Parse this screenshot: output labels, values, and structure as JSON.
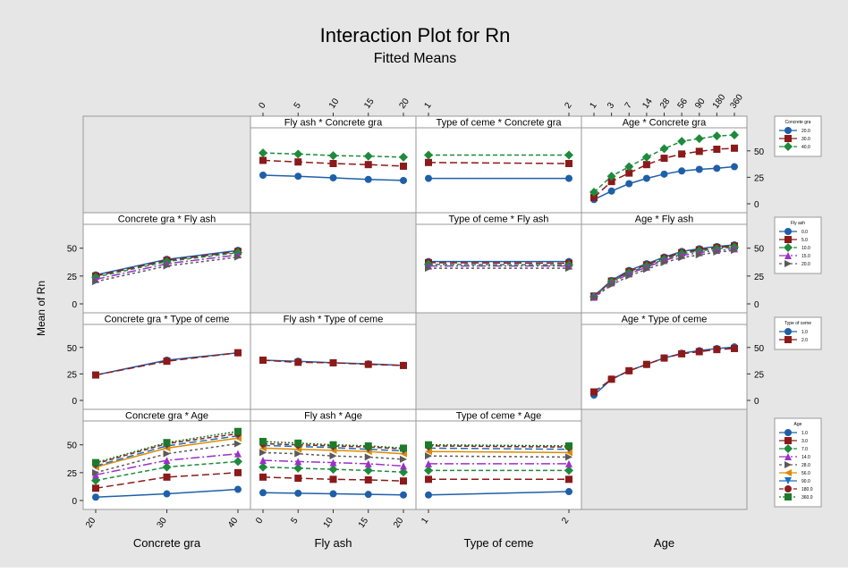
{
  "title": "Interaction Plot for Rn",
  "subtitle": "Fitted Means",
  "ylabel": "Mean of Rn",
  "colors": {
    "background": "#e6e6e6",
    "panel": "#ffffff",
    "series": [
      "#1f5fa8",
      "#8b1a1a",
      "#1e8a3c",
      "#9b30c8",
      "#5a5a5a",
      "#e08a00",
      "#1a6fc0",
      "#8b2020",
      "#1e7a2a"
    ]
  },
  "factors": [
    {
      "name": "Concrete gra",
      "levels": [
        "20",
        "30",
        "40"
      ]
    },
    {
      "name": "Fly ash",
      "levels": [
        "0",
        "5",
        "10",
        "15",
        "20"
      ]
    },
    {
      "name": "Type of ceme",
      "levels": [
        "1",
        "2"
      ]
    },
    {
      "name": "Age",
      "levels": [
        "1",
        "3",
        "7",
        "14",
        "28",
        "56",
        "90",
        "180",
        "360"
      ]
    }
  ],
  "row_axis_ticks": [
    [
      "0",
      "25",
      "50"
    ],
    [
      "0",
      "25",
      "50"
    ],
    [
      "0",
      "25",
      "50"
    ],
    [
      "0",
      "25",
      "50"
    ]
  ],
  "legends": [
    {
      "title": "Concrete gra",
      "entries": [
        "20.0",
        "30.0",
        "40.0"
      ]
    },
    {
      "title": "Fly ash",
      "entries": [
        "0.0",
        "5.0",
        "10.0",
        "15.0",
        "20.0"
      ]
    },
    {
      "title": "Type of ceme",
      "entries": [
        "1.0",
        "2.0"
      ]
    },
    {
      "title": "Age",
      "entries": [
        "1.0",
        "3.0",
        "7.0",
        "14.0",
        "28.0",
        "56.0",
        "90.0",
        "180.0",
        "360.0"
      ]
    }
  ],
  "chart_data": {
    "type": "line",
    "title": "Interaction Plot for Rn",
    "subtitle": "Fitted Means",
    "ylabel": "Mean of Rn",
    "ylim": [
      0,
      65
    ],
    "grid": false,
    "panels": [
      {
        "row": 0,
        "col": 1,
        "title": "Fly ash * Concrete gra",
        "series": [
          {
            "values": [
              27,
              26,
              24.5,
              23,
              22
            ]
          },
          {
            "values": [
              41,
              39.5,
              38,
              37,
              35.5
            ]
          },
          {
            "values": [
              48,
              47,
              45.5,
              45,
              44
            ]
          }
        ]
      },
      {
        "row": 0,
        "col": 2,
        "title": "Type of ceme * Concrete gra",
        "series": [
          {
            "values": [
              24,
              24
            ]
          },
          {
            "values": [
              39,
              38
            ]
          },
          {
            "values": [
              46,
              46
            ]
          }
        ]
      },
      {
        "row": 0,
        "col": 3,
        "title": "Age * Concrete gra",
        "series": [
          {
            "values": [
              4,
              12,
              19,
              24,
              28,
              31,
              32.5,
              33.5,
              35
            ]
          },
          {
            "values": [
              6,
              21,
              29,
              37,
              43,
              47,
              49.5,
              51.5,
              52.5
            ]
          },
          {
            "values": [
              11,
              26,
              35,
              44,
              52,
              59,
              61.5,
              64,
              65
            ]
          }
        ]
      },
      {
        "row": 1,
        "col": 0,
        "title": "Concrete gra * Fly ash",
        "series": [
          {
            "values": [
              26,
              40,
              48
            ]
          },
          {
            "values": [
              25,
              39,
              47
            ]
          },
          {
            "values": [
              24,
              38,
              46
            ]
          },
          {
            "values": [
              22,
              36,
              44
            ]
          },
          {
            "values": [
              20,
              34,
              42
            ]
          }
        ]
      },
      {
        "row": 1,
        "col": 2,
        "title": "Type of ceme * Fly ash",
        "series": [
          {
            "values": [
              38,
              38
            ]
          },
          {
            "values": [
              37,
              36.5
            ]
          },
          {
            "values": [
              35.5,
              35
            ]
          },
          {
            "values": [
              34,
              34
            ]
          },
          {
            "values": [
              32,
              32
            ]
          }
        ]
      },
      {
        "row": 1,
        "col": 3,
        "title": "Age * Fly ash",
        "series": [
          {
            "values": [
              7,
              21,
              30,
              36,
              42,
              47,
              49.5,
              51.5,
              53
            ]
          },
          {
            "values": [
              7,
              20.5,
              29,
              35,
              41,
              46,
              48.5,
              50.5,
              52
            ]
          },
          {
            "values": [
              6.5,
              20,
              28,
              34,
              40,
              45,
              47.5,
              49.5,
              51
            ]
          },
          {
            "values": [
              6,
              19,
              27,
              33,
              39,
              43.5,
              46,
              48,
              49.5
            ]
          },
          {
            "values": [
              5.5,
              17,
              25,
              31,
              37,
              41.5,
              44,
              46.5,
              48
            ]
          }
        ]
      },
      {
        "row": 2,
        "col": 0,
        "title": "Concrete gra * Type of ceme",
        "series": [
          {
            "values": [
              24,
              38,
              45
            ]
          },
          {
            "values": [
              24,
              37,
              45
            ]
          }
        ]
      },
      {
        "row": 2,
        "col": 1,
        "title": "Fly ash * Type of ceme",
        "series": [
          {
            "values": [
              38,
              37,
              35.5,
              34.5,
              33
            ]
          },
          {
            "values": [
              38,
              36,
              35.5,
              34,
              33
            ]
          }
        ]
      },
      {
        "row": 2,
        "col": 3,
        "title": "Age * Type of ceme",
        "series": [
          {
            "values": [
              5,
              20,
              28,
              34,
              40,
              44.5,
              47,
              49,
              50.5
            ]
          },
          {
            "values": [
              8,
              20,
              28,
              34,
              40,
              44,
              46,
              48,
              49
            ]
          }
        ]
      },
      {
        "row": 3,
        "col": 0,
        "title": "Concrete gra * Age",
        "series": [
          {
            "values": [
              3,
              6,
              10
            ]
          },
          {
            "values": [
              11,
              21,
              25
            ]
          },
          {
            "values": [
              18,
              30,
              35
            ]
          },
          {
            "values": [
              23,
              36,
              42
            ]
          },
          {
            "values": [
              25,
              42,
              51
            ]
          },
          {
            "values": [
              30,
              47,
              56
            ]
          },
          {
            "values": [
              31,
              49,
              58
            ]
          },
          {
            "values": [
              33,
              51,
              60
            ]
          },
          {
            "values": [
              34,
              52,
              62
            ]
          }
        ]
      },
      {
        "row": 3,
        "col": 1,
        "title": "Fly ash * Age",
        "series": [
          {
            "values": [
              7,
              6.5,
              6,
              5.5,
              5
            ]
          },
          {
            "values": [
              21,
              20,
              19,
              18.5,
              17.5
            ]
          },
          {
            "values": [
              30,
              29,
              28,
              27,
              25.5
            ]
          },
          {
            "values": [
              36,
              35,
              34,
              33,
              31
            ]
          },
          {
            "values": [
              43,
              42,
              40,
              39,
              37
            ]
          },
          {
            "values": [
              47,
              46,
              45,
              44,
              42
            ]
          },
          {
            "values": [
              49.5,
              48.5,
              47.5,
              46,
              44.5
            ]
          },
          {
            "values": [
              51,
              50,
              49,
              48,
              46.5
            ]
          },
          {
            "values": [
              53,
              51.5,
              50,
              49,
              47
            ]
          }
        ]
      },
      {
        "row": 3,
        "col": 2,
        "title": "Type of ceme * Age",
        "series": [
          {
            "values": [
              5,
              8
            ]
          },
          {
            "values": [
              19,
              19
            ]
          },
          {
            "values": [
              27,
              27
            ]
          },
          {
            "values": [
              33,
              33
            ]
          },
          {
            "values": [
              40,
              39
            ]
          },
          {
            "values": [
              44,
              43
            ]
          },
          {
            "values": [
              47,
              46
            ]
          },
          {
            "values": [
              49,
              48
            ]
          },
          {
            "values": [
              50,
              49
            ]
          }
        ]
      }
    ]
  }
}
